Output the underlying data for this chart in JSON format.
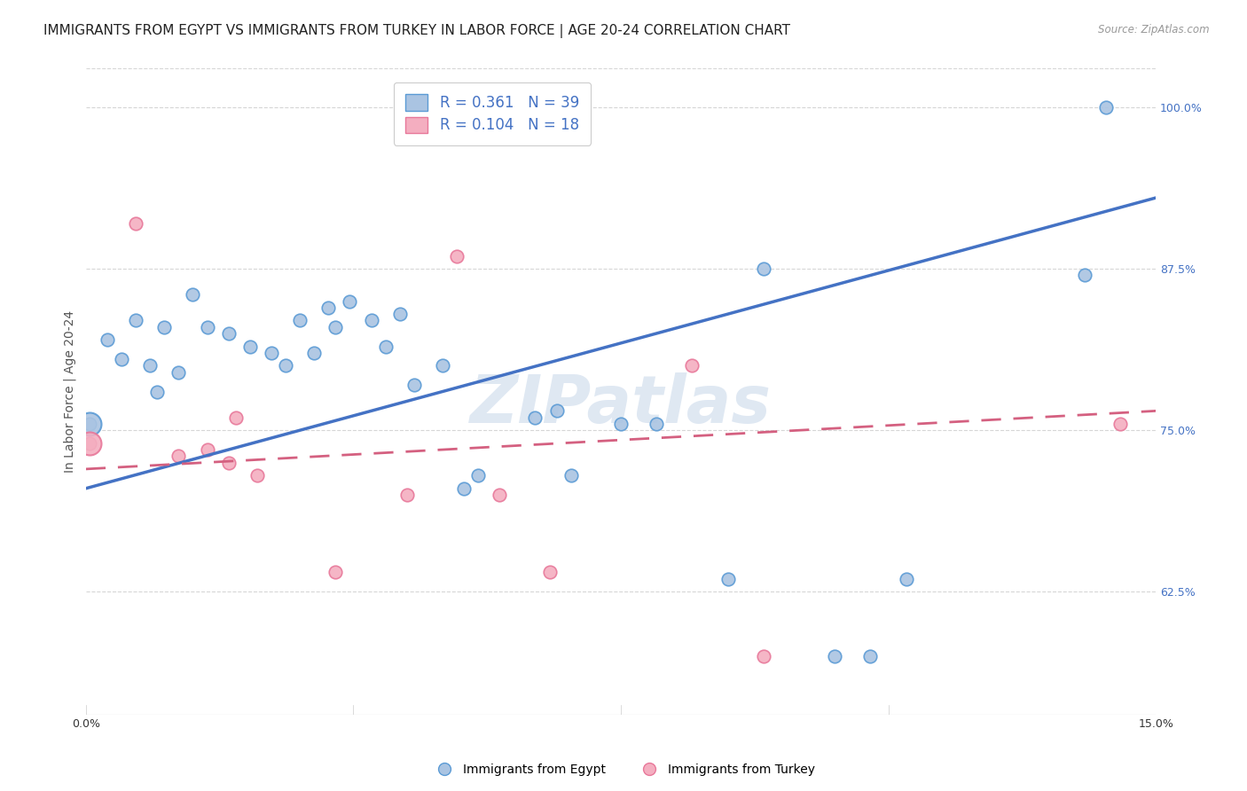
{
  "title": "IMMIGRANTS FROM EGYPT VS IMMIGRANTS FROM TURKEY IN LABOR FORCE | AGE 20-24 CORRELATION CHART",
  "source": "Source: ZipAtlas.com",
  "ylabel": "In Labor Force | Age 20-24",
  "xlim": [
    0.0,
    15.0
  ],
  "ylim": [
    53.0,
    103.0
  ],
  "ytick_positions": [
    62.5,
    75.0,
    87.5,
    100.0
  ],
  "ytick_labels": [
    "62.5%",
    "75.0%",
    "87.5%",
    "100.0%"
  ],
  "egypt_color": "#aac4e2",
  "turkey_color": "#f4aec0",
  "egypt_edge_color": "#5b9bd5",
  "turkey_edge_color": "#e8789a",
  "egypt_line_color": "#4472c4",
  "turkey_line_color": "#d46080",
  "background_color": "#ffffff",
  "grid_color": "#cccccc",
  "legend_egypt_label": "R = 0.361   N = 39",
  "legend_turkey_label": "R = 0.104   N = 18",
  "watermark": "ZIPatlas",
  "egypt_points_x": [
    0.05,
    0.3,
    0.5,
    0.7,
    0.9,
    1.0,
    1.1,
    1.3,
    1.5,
    1.7,
    2.0,
    2.3,
    2.6,
    2.8,
    3.0,
    3.2,
    3.4,
    3.5,
    3.7,
    4.0,
    4.2,
    4.4,
    4.6,
    5.0,
    5.3,
    5.5,
    6.3,
    6.6,
    6.8,
    7.5,
    8.0,
    9.0,
    9.5,
    10.5,
    11.0,
    11.5,
    14.0,
    14.3
  ],
  "egypt_points_y": [
    75.5,
    82.0,
    80.5,
    83.5,
    80.0,
    78.0,
    83.0,
    79.5,
    85.5,
    83.0,
    82.5,
    81.5,
    81.0,
    80.0,
    83.5,
    81.0,
    84.5,
    83.0,
    85.0,
    83.5,
    81.5,
    84.0,
    78.5,
    80.0,
    70.5,
    71.5,
    76.0,
    76.5,
    71.5,
    75.5,
    75.5,
    63.5,
    87.5,
    57.5,
    57.5,
    63.5,
    87.0,
    100.0
  ],
  "egypt_big_x": [
    0.05
  ],
  "egypt_big_y": [
    75.5
  ],
  "turkey_points_x": [
    0.05,
    0.7,
    1.3,
    1.7,
    2.0,
    2.1,
    2.4,
    3.5,
    4.5,
    5.2,
    5.8,
    6.5,
    8.5,
    9.5,
    14.5
  ],
  "turkey_points_y": [
    74.0,
    91.0,
    73.0,
    73.5,
    72.5,
    76.0,
    71.5,
    64.0,
    70.0,
    88.5,
    70.0,
    64.0,
    80.0,
    57.5,
    75.5
  ],
  "turkey_big_x": [
    0.05
  ],
  "turkey_big_y": [
    74.0
  ],
  "egypt_line_x": [
    0.0,
    15.0
  ],
  "egypt_line_y": [
    70.5,
    93.0
  ],
  "turkey_line_x": [
    0.0,
    15.0
  ],
  "turkey_line_y": [
    72.0,
    76.5
  ],
  "marker_size": 110,
  "marker_size_big": 350,
  "title_fontsize": 11,
  "axis_label_fontsize": 10,
  "tick_fontsize": 9,
  "tick_color_y": "#4472c4",
  "legend_fontsize": 12
}
